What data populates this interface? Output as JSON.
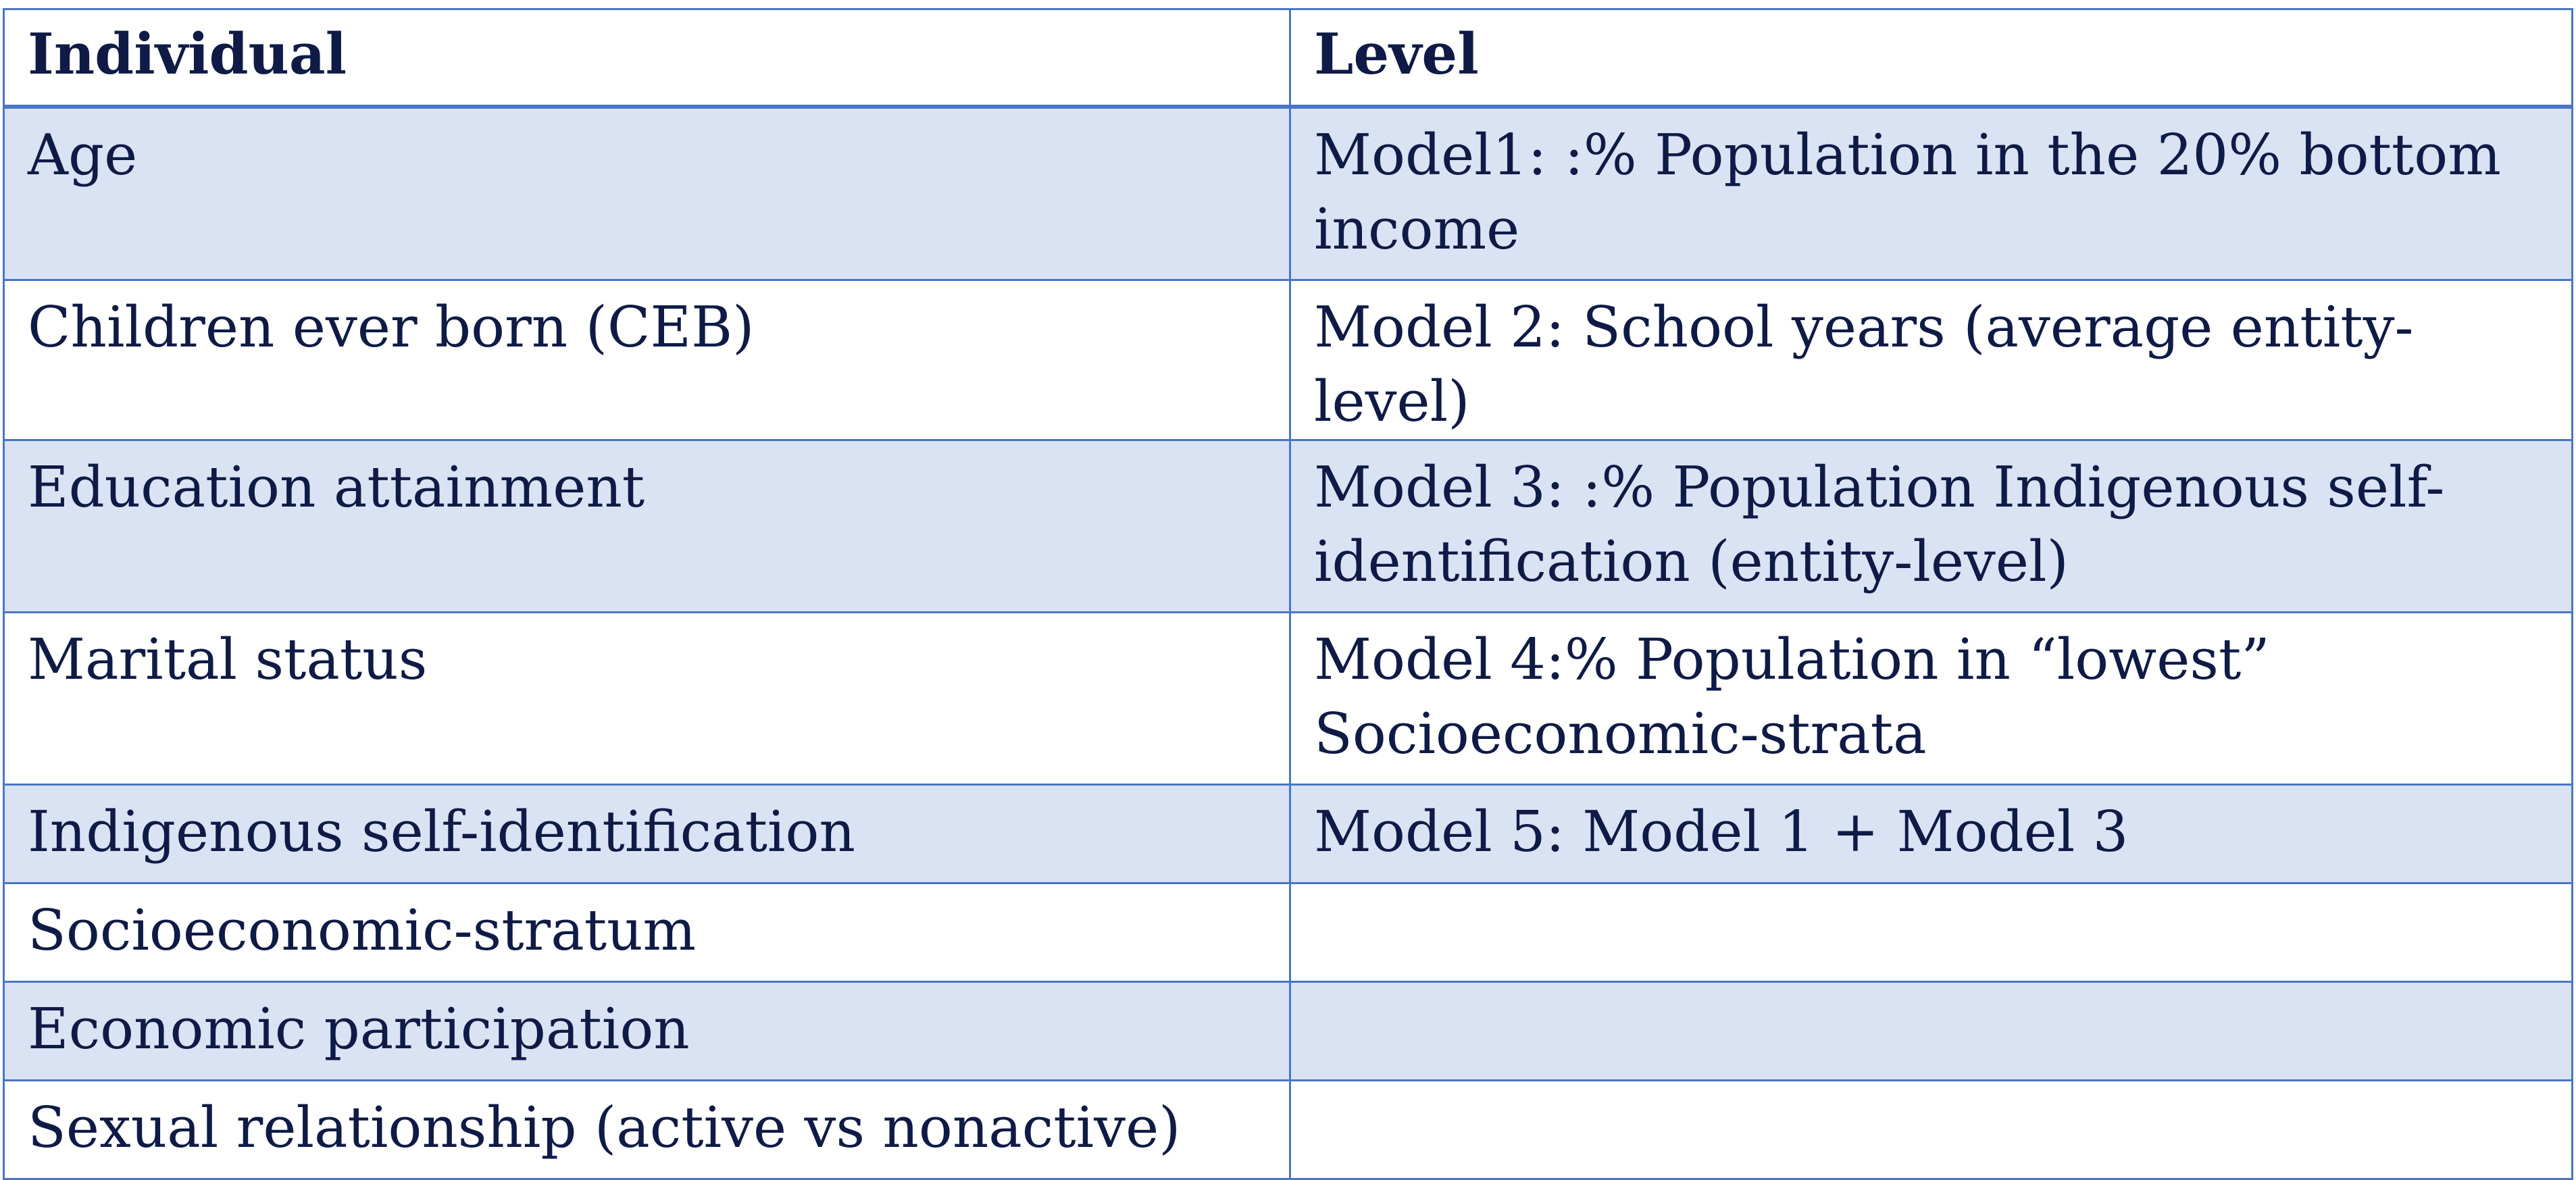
{
  "table": {
    "headers": [
      "Individual",
      "Level"
    ],
    "rows": [
      [
        "Age",
        "Model1: :% Population in the 20% bottom income"
      ],
      [
        "Children ever born (CEB)",
        "Model 2: School years (average entity-level)"
      ],
      [
        "Education attainment",
        "Model 3: :% Population  Indigenous self-identification (entity-level)"
      ],
      [
        "Marital status",
        "Model 4:% Population in “lowest” Socioeconomic-strata"
      ],
      [
        "Indigenous self-identification",
        "Model 5: Model 1 + Model 3"
      ],
      [
        "Socioeconomic-stratum",
        ""
      ],
      [
        "Economic participation",
        ""
      ],
      [
        "Sexual relationship (active vs nonactive)",
        ""
      ]
    ]
  },
  "colors": {
    "border": "#4a76c4",
    "shaded_row": "#d9e3f3",
    "text": "#0f1b46"
  }
}
